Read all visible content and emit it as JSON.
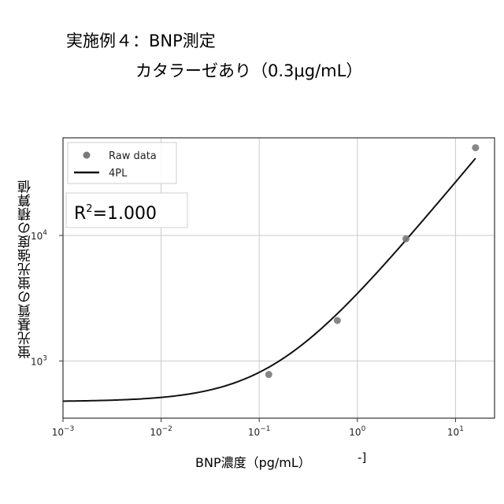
{
  "title_line1": "実施例４：BNP測定",
  "title_line2": "カタラーゼあり（0.3μg/mL）",
  "chart_data": {
    "type": "scatter",
    "xlabel": "BNP濃度（pg/mL）",
    "xlabel_fragment": "-]",
    "ylabel": "蛍光基質の蛍光強度の積算値",
    "x_scale": "log",
    "y_scale": "log",
    "xlim": [
      0.001,
      25
    ],
    "ylim": [
      350,
      60000
    ],
    "x_ticks": [
      {
        "value": 0.001,
        "base": "10",
        "exp": "−3"
      },
      {
        "value": 0.01,
        "base": "10",
        "exp": "−2"
      },
      {
        "value": 0.1,
        "base": "10",
        "exp": "−1"
      },
      {
        "value": 1,
        "base": "10",
        "exp": "0"
      },
      {
        "value": 10,
        "base": "10",
        "exp": "1"
      }
    ],
    "y_ticks": [
      {
        "value": 1000,
        "base": "10",
        "exp": "3"
      },
      {
        "value": 10000,
        "base": "10",
        "exp": "4"
      }
    ],
    "grid": true,
    "legend_position": "top-left",
    "series": [
      {
        "name": "Raw data",
        "kind": "points",
        "color": "#7a7a7a",
        "x": [
          0.125,
          0.625,
          3.125,
          16
        ],
        "y": [
          780,
          2100,
          9400,
          50000
        ]
      },
      {
        "name": "4PL",
        "kind": "line",
        "color": "#111111",
        "model": {
          "bottom": 474,
          "top": 14800000,
          "ec50": 8170,
          "hill": 0.945
        }
      }
    ],
    "annotation": {
      "base": "R",
      "exp": "2",
      "text": "=1.000"
    }
  }
}
